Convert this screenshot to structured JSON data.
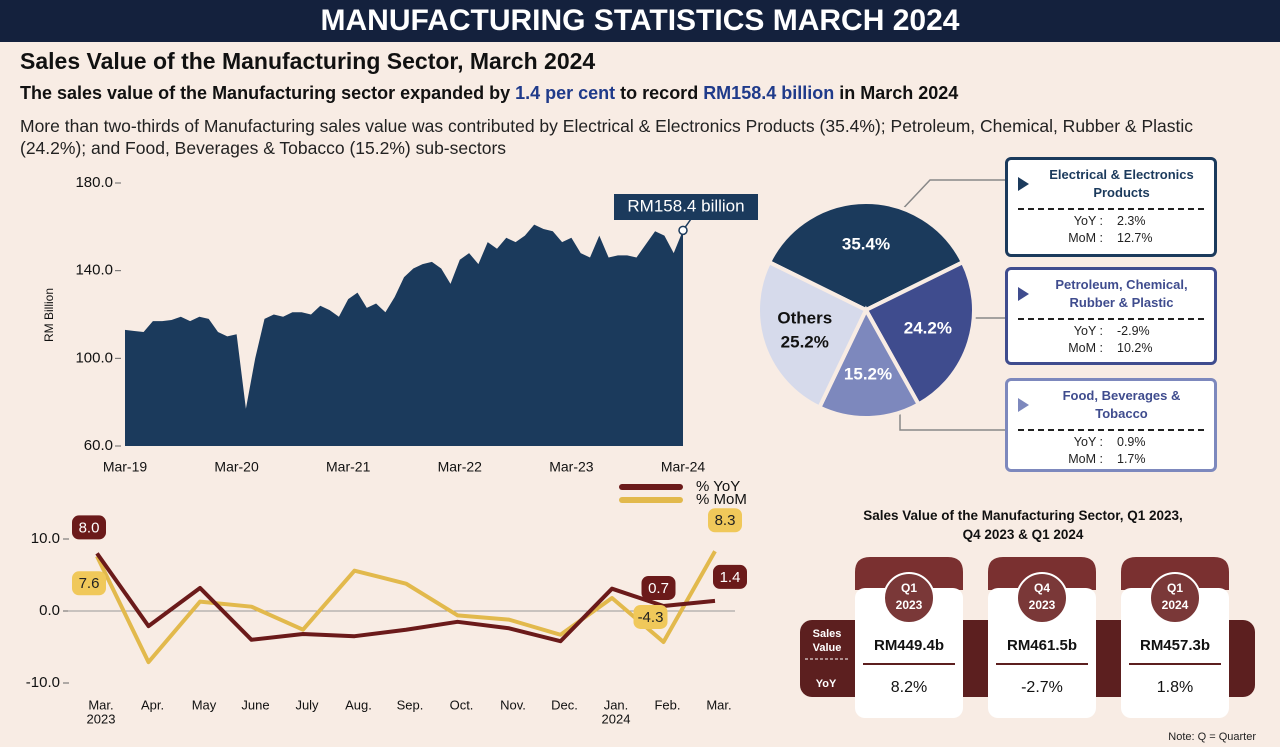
{
  "header": {
    "title": "MANUFACTURING STATISTICS MARCH 2024"
  },
  "section": {
    "title": "Sales Value of the Manufacturing Sector, March 2024",
    "headline": [
      "The sales value of the Manufacturing sector expanded by ",
      "1.4 per cent",
      " to record ",
      "RM158.4 billion",
      " in March 2024"
    ],
    "description": "More than two-thirds of Manufacturing sales value was contributed by Electrical & Electronics Products (35.4%); Petroleum, Chemical, Rubber & Plastic (24.2%); and Food, Beverages & Tobacco (15.2%) sub-sectors"
  },
  "chart_data": [
    {
      "type": "area",
      "y_label": "RM Billion",
      "color": "#1b3a5c",
      "annotation": "RM158.4 billion",
      "categories": [
        "Mar-19",
        null,
        null,
        null,
        null,
        null,
        null,
        null,
        null,
        null,
        null,
        null,
        "Mar-20",
        null,
        null,
        null,
        null,
        null,
        null,
        null,
        null,
        null,
        null,
        null,
        "Mar-21",
        null,
        null,
        null,
        null,
        null,
        null,
        null,
        null,
        null,
        null,
        null,
        "Mar-22",
        null,
        null,
        null,
        null,
        null,
        null,
        null,
        null,
        null,
        null,
        null,
        "Mar-23",
        null,
        null,
        null,
        null,
        null,
        null,
        null,
        null,
        null,
        null,
        null,
        "Mar-24"
      ],
      "values": [
        113,
        112.5,
        112,
        117,
        117,
        117.5,
        119,
        117,
        119,
        118,
        112,
        110,
        111,
        77,
        100,
        118,
        120,
        119,
        121,
        121,
        120,
        124,
        122,
        119,
        127,
        130,
        123,
        125,
        121,
        128,
        137,
        141,
        143,
        144,
        141,
        134,
        145,
        148,
        143,
        153,
        150,
        155,
        153,
        156,
        161,
        159,
        158,
        153,
        155,
        148,
        146,
        156,
        146,
        147,
        147,
        146,
        152,
        158,
        156,
        148,
        158.4
      ],
      "ylim": [
        60,
        180
      ],
      "yticks": [
        {
          "value": 60,
          "label": "60.0"
        },
        {
          "value": 100,
          "label": "100.0"
        },
        {
          "value": 140,
          "label": "140.0"
        },
        {
          "value": 180,
          "label": "180.0"
        }
      ]
    },
    {
      "type": "line",
      "categories": [
        "Mar.",
        "Apr.",
        "May",
        "June",
        "July",
        "Aug.",
        "Sep.",
        "Oct.",
        "Nov.",
        "Dec.",
        "Jan.",
        "Feb.",
        "Mar."
      ],
      "year_labels": [
        "2023",
        null,
        null,
        null,
        null,
        null,
        null,
        null,
        null,
        null,
        "2024",
        null,
        null
      ],
      "ylim": [
        -10,
        10
      ],
      "yticks": [
        {
          "value": -10,
          "label": "-10.0"
        },
        {
          "value": 0,
          "label": "0.0"
        },
        {
          "value": 10,
          "label": "10.0"
        }
      ],
      "series": [
        {
          "name": "% YoY",
          "color": "#6b1a1a",
          "values": [
            8.0,
            -2.1,
            3.2,
            -4.0,
            -3.2,
            -3.5,
            -2.6,
            -1.5,
            -2.4,
            -4.2,
            3.1,
            0.7,
            1.4
          ],
          "value_labels": [
            "8.0",
            null,
            null,
            null,
            null,
            null,
            null,
            null,
            null,
            null,
            null,
            "0.7",
            "1.4"
          ]
        },
        {
          "name": "% MoM",
          "color": "#e2b94c",
          "values": [
            7.6,
            -7.1,
            1.3,
            0.6,
            -2.6,
            5.6,
            3.8,
            -0.6,
            -1.2,
            -3.3,
            1.8,
            -4.3,
            8.3
          ],
          "value_labels": [
            "7.6",
            null,
            null,
            null,
            null,
            null,
            null,
            null,
            null,
            null,
            null,
            "-4.3",
            "8.3"
          ]
        }
      ]
    },
    {
      "type": "pie",
      "categories": [
        "Electrical & Electronics Products",
        "Petroleum, Chemical, Rubber & Plastic",
        "Food, Beverages & Tobacco",
        "Others"
      ],
      "values": [
        35.4,
        24.2,
        15.2,
        25.2
      ],
      "value_labels": [
        "35.4%",
        "24.2%",
        "15.2%",
        "25.2%"
      ],
      "colors": [
        "#1b3a5c",
        "#3f4c8e",
        "#7d88bd",
        "#d6daeb"
      ],
      "detail_labels": {
        "yoy": "YoY :",
        "mom": "MoM :"
      },
      "details": [
        {
          "yoy": "2.3%",
          "mom": "12.7%"
        },
        {
          "yoy": "-2.9%",
          "mom": "10.2%"
        },
        {
          "yoy": "0.9%",
          "mom": "1.7%"
        }
      ]
    }
  ],
  "quarters": {
    "title": "Sales Value of the Manufacturing Sector, Q1 2023, Q4 2023 & Q1 2024",
    "row_labels": [
      "Sales Value",
      "YoY"
    ],
    "items": [
      {
        "quarter": "Q1",
        "year": "2023",
        "sales": "RM449.4b",
        "yoy": "8.2%"
      },
      {
        "quarter": "Q4",
        "year": "2023",
        "sales": "RM461.5b",
        "yoy": "-2.7%"
      },
      {
        "quarter": "Q1",
        "year": "2024",
        "sales": "RM457.3b",
        "yoy": "1.8%"
      }
    ]
  },
  "note": "Note: Q = Quarter"
}
